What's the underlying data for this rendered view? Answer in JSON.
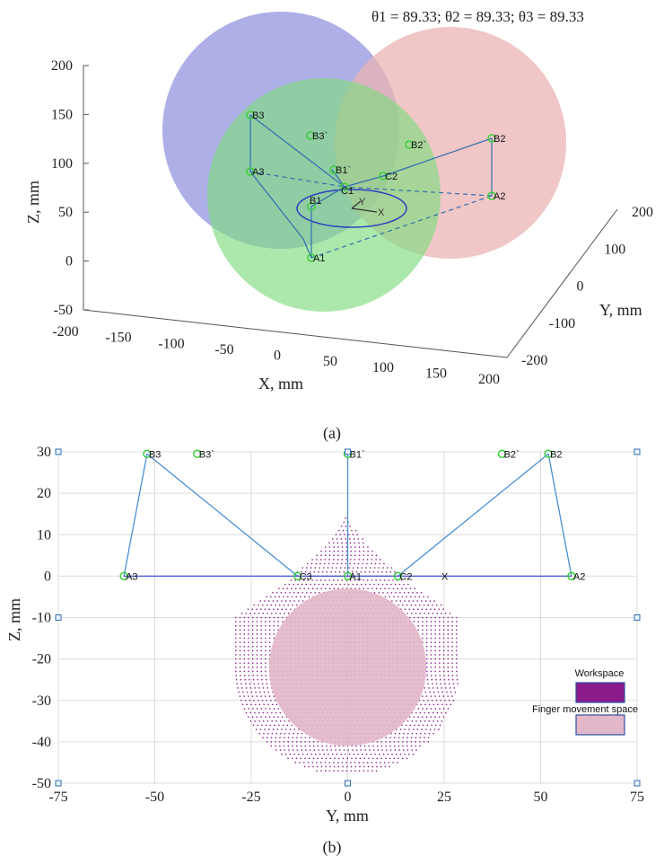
{
  "chart_data": [
    {
      "type": "scatter",
      "title": "θ1 = 89.33; θ2 = 89.33; θ3 = 89.33",
      "caption": "(a)",
      "xlabel": "X, mm",
      "ylabel": "Y, mm",
      "zlabel": "Z, mm",
      "xlim": [
        -200,
        200
      ],
      "ylim": [
        -200,
        200
      ],
      "zlim": [
        -50,
        200
      ],
      "x_ticks": [
        "-200",
        "-150",
        "-100",
        "-50",
        "0",
        "50",
        "100",
        "150",
        "200"
      ],
      "y_ticks": [
        "-200",
        "-100",
        "0",
        "100",
        "200"
      ],
      "z_ticks": [
        "-50",
        "0",
        "50",
        "100",
        "150",
        "200"
      ],
      "spheres": [
        {
          "name": "sphere-b3",
          "color": "#8c8ddd"
        },
        {
          "name": "sphere-b2",
          "color": "#ebb3b3"
        },
        {
          "name": "sphere-b1",
          "color": "#7fdc7f"
        }
      ],
      "points": [
        "A1",
        "A2",
        "A3",
        "B1",
        "B2",
        "B3",
        "B1`",
        "B2`",
        "B3`",
        "C1",
        "C2"
      ],
      "axis_labels": [
        "Y",
        "X"
      ]
    },
    {
      "type": "scatter",
      "caption": "(b)",
      "xlabel": "Y, mm",
      "ylabel": "Z, mm",
      "xlim": [
        -75,
        75
      ],
      "ylim": [
        -50,
        30
      ],
      "x_ticks": [
        -75,
        -50,
        -25,
        0,
        25,
        50,
        75
      ],
      "y_ticks": [
        -50,
        -40,
        -30,
        -20,
        -10,
        0,
        10,
        20,
        30
      ],
      "grid": true,
      "points": [
        {
          "label": "A3",
          "x": -58,
          "y": 0
        },
        {
          "label": "A2",
          "x": 58,
          "y": 0
        },
        {
          "label": "A1",
          "x": 0,
          "y": 0
        },
        {
          "label": "B3",
          "x": -52,
          "y": 29.5
        },
        {
          "label": "B3`",
          "x": -39,
          "y": 29.5
        },
        {
          "label": "B1`",
          "x": 0,
          "y": 29.5
        },
        {
          "label": "B2`",
          "x": 40,
          "y": 29.5
        },
        {
          "label": "B2",
          "x": 52,
          "y": 29.5
        },
        {
          "label": "C3",
          "x": -13,
          "y": 0
        },
        {
          "label": "C2",
          "x": 13,
          "y": 0
        },
        {
          "label": "X",
          "x": 25,
          "y": 0
        }
      ],
      "workspace": {
        "name": "Workspace",
        "color": "#8b1a8b",
        "z_min": -48,
        "z_top": 16,
        "y_half_width": 29
      },
      "finger_space": {
        "name": "Finger movement space",
        "color": "#e2b7c9",
        "center_y": 0,
        "center_z": -22,
        "radius": 19
      },
      "legend": {
        "position": "right",
        "entries": [
          "Workspace",
          "Finger movement space"
        ]
      }
    }
  ]
}
